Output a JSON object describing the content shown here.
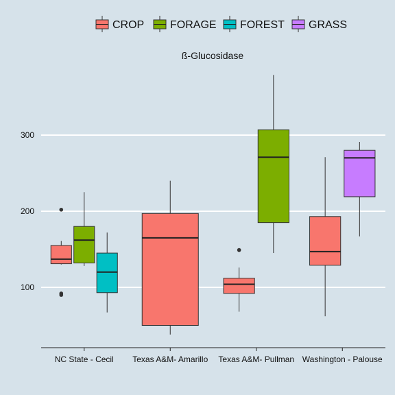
{
  "chart_data": {
    "type": "boxplot",
    "title": "ß-Glucosidase",
    "xlabel": "",
    "ylabel": "",
    "ylim": [
      20,
      400
    ],
    "yticks": [
      100,
      200,
      300
    ],
    "grid": "horizontal major lines",
    "legend_position": "top",
    "categories": [
      "NC State - Cecil",
      "Texas A&M- Amarillo",
      "Texas A&M- Pullman",
      "Washington - Palouse"
    ],
    "groups": [
      {
        "name": "CROP",
        "color": "#f8766d"
      },
      {
        "name": "FORAGE",
        "color": "#7cae00"
      },
      {
        "name": "FOREST",
        "color": "#00bfc4"
      },
      {
        "name": "GRASS",
        "color": "#c77cff"
      }
    ],
    "boxes": [
      {
        "category": "NC State - Cecil",
        "group": "CROP",
        "min": 130,
        "q1": 131,
        "median": 137,
        "q3": 155,
        "max": 161,
        "outliers": [
          202,
          92,
          90
        ]
      },
      {
        "category": "NC State - Cecil",
        "group": "FORAGE",
        "min": 128,
        "q1": 132,
        "median": 162,
        "q3": 180,
        "max": 225,
        "outliers": []
      },
      {
        "category": "NC State - Cecil",
        "group": "FOREST",
        "min": 67,
        "q1": 93,
        "median": 120,
        "q3": 145,
        "max": 172,
        "outliers": []
      },
      {
        "category": "Texas A&M- Amarillo",
        "group": "CROP",
        "min": 38,
        "q1": 50,
        "median": 165,
        "q3": 197,
        "max": 240,
        "outliers": []
      },
      {
        "category": "Texas A&M- Pullman",
        "group": "CROP",
        "min": 68,
        "q1": 92,
        "median": 104,
        "q3": 112,
        "max": 126,
        "outliers": [
          149
        ]
      },
      {
        "category": "Texas A&M- Pullman",
        "group": "FORAGE",
        "min": 145,
        "q1": 185,
        "median": 271,
        "q3": 307,
        "max": 379,
        "outliers": []
      },
      {
        "category": "Washington - Palouse",
        "group": "CROP",
        "min": 62,
        "q1": 129,
        "median": 147,
        "q3": 193,
        "max": 271,
        "outliers": []
      },
      {
        "category": "Washington - Palouse",
        "group": "GRASS",
        "min": 167,
        "q1": 219,
        "median": 270,
        "q3": 280,
        "max": 291,
        "outliers": []
      }
    ]
  }
}
